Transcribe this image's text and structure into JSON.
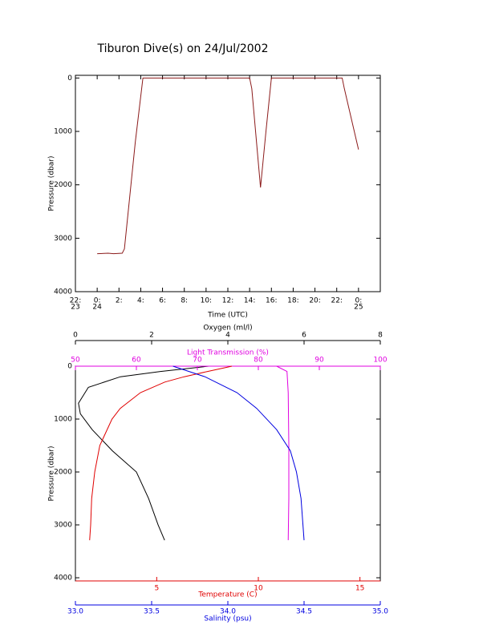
{
  "chart_data": [
    {
      "type": "line",
      "title": "Tiburon Dive(s) on 24/Jul/2002",
      "xlabel": "Time (UTC)",
      "ylabel": "Pressure (dbar)",
      "xlim": [
        -2,
        26
      ],
      "ylim": [
        4000,
        -50
      ],
      "xticks": [
        {
          "value": -2,
          "label": "22:"
        },
        {
          "value": 0,
          "label": "0:"
        },
        {
          "value": 2,
          "label": "2:"
        },
        {
          "value": 4,
          "label": "4:"
        },
        {
          "value": 6,
          "label": "6:"
        },
        {
          "value": 8,
          "label": "8:"
        },
        {
          "value": 10,
          "label": "10:"
        },
        {
          "value": 12,
          "label": "12:"
        },
        {
          "value": 14,
          "label": "14:"
        },
        {
          "value": 16,
          "label": "16:"
        },
        {
          "value": 18,
          "label": "18:"
        },
        {
          "value": 20,
          "label": "20:"
        },
        {
          "value": 22,
          "label": "22:"
        },
        {
          "value": 24,
          "label": "0:"
        }
      ],
      "xtick_dates": [
        {
          "value": -2,
          "label": "23"
        },
        {
          "value": 0,
          "label": "24"
        },
        {
          "value": 24,
          "label": "25"
        }
      ],
      "yticks": [
        0,
        1000,
        2000,
        3000,
        4000
      ],
      "color": "#8b1a1a",
      "x": [
        0,
        1,
        1.5,
        2.3,
        2.5,
        3,
        3.5,
        4.2,
        14,
        14.2,
        15,
        15.5,
        16,
        22.5,
        22.7,
        24
      ],
      "values": [
        3290,
        3280,
        3290,
        3280,
        3200,
        2200,
        1200,
        0,
        0,
        200,
        2050,
        1000,
        0,
        0,
        200,
        1340
      ]
    },
    {
      "type": "profile",
      "ylabel": "Pressure (dbar)",
      "ylim": [
        4060,
        0
      ],
      "yticks": [
        0,
        1000,
        2000,
        3000,
        4000
      ],
      "series": [
        {
          "name": "Oxygen (ml/l)",
          "color": "#000000",
          "xlim": [
            0,
            8
          ],
          "xticks": [
            0,
            2,
            4,
            6,
            8
          ],
          "x": [
            3.5,
            2.23,
            1.18,
            0.34,
            0.08,
            0.13,
            0.44,
            0.97,
            1.6,
            1.92,
            2.17,
            2.34
          ],
          "values": [
            0,
            100,
            200,
            400,
            700,
            900,
            1200,
            1600,
            2000,
            2500,
            3000,
            3290
          ]
        },
        {
          "name": "Light Transmission (%)",
          "color": "#e000e0",
          "xlim": [
            50,
            100
          ],
          "xticks": [
            50,
            60,
            70,
            80,
            90,
            100
          ],
          "x": [
            83,
            84.7,
            84.9,
            85,
            85,
            84.9
          ],
          "values": [
            0,
            100,
            500,
            1500,
            2500,
            3290
          ]
        },
        {
          "name": "Temperature (C)",
          "color": "#e00000",
          "xlim": [
            1,
            16
          ],
          "xticks": [
            5,
            10,
            15
          ],
          "x": [
            8.7,
            7.5,
            6.35,
            5.4,
            4.2,
            3.2,
            2.8,
            2.2,
            1.95,
            1.8,
            1.75,
            1.7
          ],
          "values": [
            0,
            100,
            200,
            300,
            500,
            800,
            1000,
            1500,
            2000,
            2500,
            3000,
            3290
          ]
        },
        {
          "name": "Salinity (psu)",
          "color": "#0000e0",
          "xlim": [
            33,
            35
          ],
          "xticks": [
            {
              "value": 33,
              "label": "33.0"
            },
            {
              "value": 33.5,
              "label": "33.5"
            },
            {
              "value": 34,
              "label": "34.0"
            },
            {
              "value": 34.5,
              "label": "34.5"
            },
            {
              "value": 35,
              "label": "35.0"
            }
          ],
          "x": [
            33.64,
            33.85,
            34.06,
            34.19,
            34.32,
            34.41,
            34.45,
            34.48,
            34.5
          ],
          "values": [
            0,
            200,
            500,
            800,
            1200,
            1600,
            2000,
            2500,
            3290
          ]
        }
      ]
    }
  ]
}
